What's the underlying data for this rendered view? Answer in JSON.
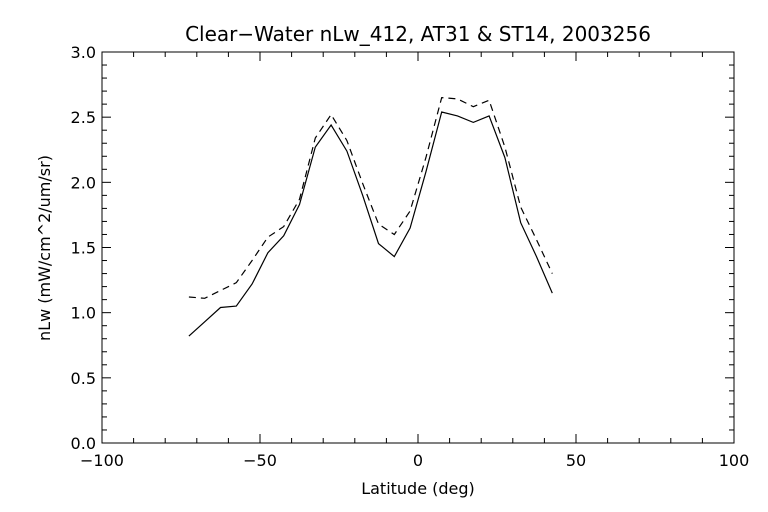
{
  "chart_data": {
    "type": "line",
    "title": "Clear−Water nLw_412, AT31 & ST14, 2003256",
    "xlabel": "Latitude (deg)",
    "ylabel": "nLw (mW/cm^2/um/sr)",
    "xlim": [
      -100,
      100
    ],
    "ylim": [
      0.0,
      3.0
    ],
    "xticks": [
      -100,
      -50,
      0,
      50,
      100
    ],
    "xtick_labels": [
      "−100",
      "−50",
      "0",
      "50",
      "100"
    ],
    "yticks": [
      0.0,
      0.5,
      1.0,
      1.5,
      2.0,
      2.5,
      3.0
    ],
    "ytick_labels": [
      "0.0",
      "0.5",
      "1.0",
      "1.5",
      "2.0",
      "2.5",
      "3.0"
    ],
    "grid": false,
    "series": [
      {
        "style": "solid",
        "color": "#000000",
        "x": [
          -72.5,
          -67.5,
          -62.5,
          -57.5,
          -52.5,
          -47.5,
          -42.5,
          -37.5,
          -32.5,
          -27.5,
          -22.5,
          -17.5,
          -12.5,
          -7.5,
          -2.5,
          2.5,
          7.5,
          12.5,
          17.5,
          22.5,
          27.5,
          32.5,
          37.5,
          42.5
        ],
        "y": [
          0.82,
          0.93,
          1.04,
          1.05,
          1.22,
          1.46,
          1.59,
          1.83,
          2.27,
          2.44,
          2.24,
          1.9,
          1.53,
          1.43,
          1.65,
          2.08,
          2.54,
          2.51,
          2.46,
          2.51,
          2.19,
          1.69,
          1.43,
          1.15
        ]
      },
      {
        "style": "dashed",
        "color": "#000000",
        "x": [
          -72.5,
          -67.5,
          -62.5,
          -57.5,
          -52.5,
          -47.5,
          -42.5,
          -37.5,
          -32.5,
          -27.5,
          -22.5,
          -17.5,
          -12.5,
          -7.5,
          -2.5,
          2.5,
          7.5,
          12.5,
          17.5,
          22.5,
          27.5,
          32.5,
          37.5,
          42.5
        ],
        "y": [
          1.12,
          1.11,
          1.17,
          1.23,
          1.4,
          1.58,
          1.66,
          1.87,
          2.34,
          2.52,
          2.32,
          1.99,
          1.68,
          1.6,
          1.78,
          2.19,
          2.65,
          2.64,
          2.58,
          2.63,
          2.27,
          1.81,
          1.56,
          1.3
        ]
      }
    ]
  }
}
